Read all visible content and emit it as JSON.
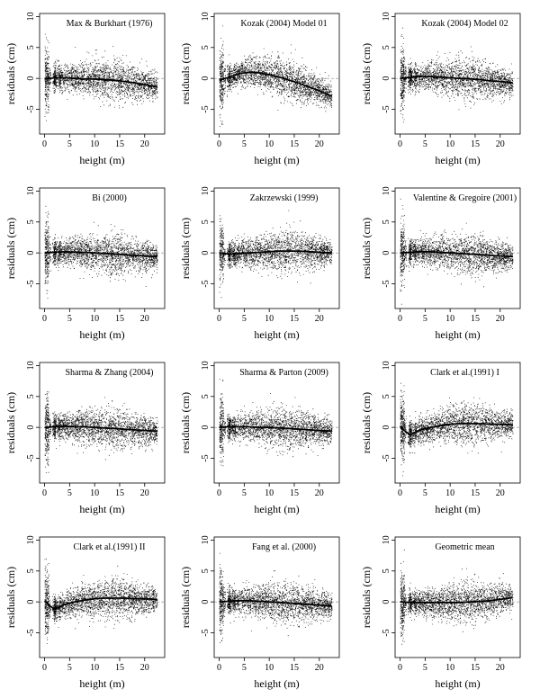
{
  "figure": {
    "x_axis_label": "height (m)",
    "y_axis_label": "residuals (cm)"
  },
  "chart_data": [
    {
      "type": "scatter",
      "title": "Max & Burkhart (1976)",
      "xlabel": "height (m)",
      "ylabel": "residuals (cm)",
      "xlim": [
        -1,
        24
      ],
      "ylim": [
        -9,
        10.5
      ],
      "xticks": [
        0,
        5,
        10,
        15,
        20
      ],
      "yticks": [
        -5,
        0,
        5,
        10
      ],
      "zero_reference_line": 0,
      "smoother_x": [
        0,
        2,
        4,
        6,
        8,
        10,
        12,
        14,
        16,
        18,
        20,
        22.5
      ],
      "smoother_y": [
        -0.1,
        0.1,
        0.1,
        0.0,
        -0.1,
        -0.1,
        -0.2,
        -0.3,
        -0.5,
        -0.7,
        -1.0,
        -1.4
      ]
    },
    {
      "type": "scatter",
      "title": "Kozak (2004) Model 01",
      "xlabel": "height (m)",
      "ylabel": "residuals (cm)",
      "xlim": [
        -1,
        24
      ],
      "ylim": [
        -9,
        10.5
      ],
      "xticks": [
        0,
        5,
        10,
        15,
        20
      ],
      "yticks": [
        -5,
        0,
        5,
        10
      ],
      "zero_reference_line": 0,
      "smoother_x": [
        0,
        2,
        4,
        6,
        8,
        10,
        12,
        14,
        16,
        18,
        20,
        22.5
      ],
      "smoother_y": [
        -0.3,
        0.2,
        0.8,
        1.0,
        0.9,
        0.6,
        0.2,
        -0.3,
        -0.8,
        -1.4,
        -2.0,
        -2.9
      ]
    },
    {
      "type": "scatter",
      "title": "Kozak (2004) Model 02",
      "xlabel": "height (m)",
      "ylabel": "residuals (cm)",
      "xlim": [
        -1,
        24
      ],
      "ylim": [
        -9,
        10.5
      ],
      "xticks": [
        0,
        5,
        10,
        15,
        20
      ],
      "yticks": [
        -5,
        0,
        5,
        10
      ],
      "zero_reference_line": 0,
      "smoother_x": [
        0,
        2,
        4,
        6,
        8,
        10,
        12,
        14,
        16,
        18,
        20,
        22.5
      ],
      "smoother_y": [
        0.0,
        0.2,
        0.3,
        0.3,
        0.2,
        0.1,
        0.0,
        -0.1,
        -0.2,
        -0.4,
        -0.5,
        -0.7
      ]
    },
    {
      "type": "scatter",
      "title": "Bi (2000)",
      "xlabel": "height (m)",
      "ylabel": "residuals (cm)",
      "xlim": [
        -1,
        24
      ],
      "ylim": [
        -9,
        10.5
      ],
      "xticks": [
        0,
        5,
        10,
        15,
        20
      ],
      "yticks": [
        -5,
        0,
        5,
        10
      ],
      "zero_reference_line": 0,
      "smoother_x": [
        0,
        2,
        4,
        6,
        8,
        10,
        12,
        14,
        16,
        18,
        20,
        22.5
      ],
      "smoother_y": [
        0.0,
        0.1,
        0.2,
        0.1,
        0.1,
        0.0,
        -0.1,
        -0.2,
        -0.3,
        -0.4,
        -0.5,
        -0.6
      ]
    },
    {
      "type": "scatter",
      "title": "Zakrzewski (1999)",
      "xlabel": "height (m)",
      "ylabel": "residuals (cm)",
      "xlim": [
        -1,
        24
      ],
      "ylim": [
        -9,
        10.5
      ],
      "xticks": [
        0,
        5,
        10,
        15,
        20
      ],
      "yticks": [
        -5,
        0,
        5,
        10
      ],
      "zero_reference_line": 0,
      "smoother_x": [
        0,
        2,
        4,
        6,
        8,
        10,
        12,
        14,
        16,
        18,
        20,
        22.5
      ],
      "smoother_y": [
        0.0,
        -0.2,
        -0.1,
        0.0,
        0.1,
        0.2,
        0.3,
        0.3,
        0.3,
        0.2,
        0.1,
        0.0
      ]
    },
    {
      "type": "scatter",
      "title": "Valentine & Gregoire (2001)",
      "xlabel": "height (m)",
      "ylabel": "residuals (cm)",
      "xlim": [
        -1,
        24
      ],
      "ylim": [
        -9,
        10.5
      ],
      "xticks": [
        0,
        5,
        10,
        15,
        20
      ],
      "yticks": [
        -5,
        0,
        5,
        10
      ],
      "zero_reference_line": 0,
      "smoother_x": [
        0,
        2,
        4,
        6,
        8,
        10,
        12,
        14,
        16,
        18,
        20,
        22.5
      ],
      "smoother_y": [
        0.0,
        0.1,
        0.2,
        0.2,
        0.1,
        0.0,
        -0.1,
        -0.2,
        -0.3,
        -0.4,
        -0.5,
        -0.6
      ]
    },
    {
      "type": "scatter",
      "title": "Sharma & Zhang (2004)",
      "xlabel": "height (m)",
      "ylabel": "residuals (cm)",
      "xlim": [
        -1,
        24
      ],
      "ylim": [
        -9,
        10.5
      ],
      "xticks": [
        0,
        5,
        10,
        15,
        20
      ],
      "yticks": [
        -5,
        0,
        5,
        10
      ],
      "zero_reference_line": 0,
      "smoother_x": [
        0,
        2,
        4,
        6,
        8,
        10,
        12,
        14,
        16,
        18,
        20,
        22.5
      ],
      "smoother_y": [
        0.0,
        0.1,
        0.2,
        0.1,
        0.1,
        0.0,
        -0.1,
        -0.2,
        -0.3,
        -0.4,
        -0.5,
        -0.6
      ]
    },
    {
      "type": "scatter",
      "title": "Sharma & Parton (2009)",
      "xlabel": "height (m)",
      "ylabel": "residuals (cm)",
      "xlim": [
        -1,
        24
      ],
      "ylim": [
        -9,
        10.5
      ],
      "xticks": [
        0,
        5,
        10,
        15,
        20
      ],
      "yticks": [
        -5,
        0,
        5,
        10
      ],
      "zero_reference_line": 0,
      "smoother_x": [
        0,
        2,
        4,
        6,
        8,
        10,
        12,
        14,
        16,
        18,
        20,
        22.5
      ],
      "smoother_y": [
        0.0,
        0.1,
        0.1,
        0.1,
        0.0,
        0.0,
        -0.1,
        -0.2,
        -0.3,
        -0.4,
        -0.5,
        -0.6
      ]
    },
    {
      "type": "scatter",
      "title": "Clark et al.(1991) I",
      "xlabel": "height (m)",
      "ylabel": "residuals (cm)",
      "xlim": [
        -1,
        24
      ],
      "ylim": [
        -9,
        10.5
      ],
      "xticks": [
        0,
        5,
        10,
        15,
        20
      ],
      "yticks": [
        -5,
        0,
        5,
        10
      ],
      "zero_reference_line": 0,
      "smoother_x": [
        0,
        1,
        2,
        3,
        4,
        6,
        8,
        10,
        12,
        14,
        16,
        18,
        20,
        22.5
      ],
      "smoother_y": [
        0.2,
        -0.6,
        -1.2,
        -0.8,
        -0.4,
        0.0,
        0.3,
        0.5,
        0.6,
        0.6,
        0.6,
        0.5,
        0.5,
        0.4
      ]
    },
    {
      "type": "scatter",
      "title": "Clark et al.(1991) II",
      "xlabel": "height (m)",
      "ylabel": "residuals (cm)",
      "xlim": [
        -1,
        24
      ],
      "ylim": [
        -9,
        10.5
      ],
      "xticks": [
        0,
        5,
        10,
        15,
        20
      ],
      "yticks": [
        -5,
        0,
        5,
        10
      ],
      "zero_reference_line": 0,
      "smoother_x": [
        0,
        1,
        2,
        3,
        4,
        6,
        8,
        10,
        12,
        14,
        16,
        18,
        20,
        22.5
      ],
      "smoother_y": [
        0.2,
        -0.6,
        -1.2,
        -0.8,
        -0.4,
        0.0,
        0.3,
        0.5,
        0.6,
        0.6,
        0.6,
        0.5,
        0.5,
        0.4
      ]
    },
    {
      "type": "scatter",
      "title": "Fang et al. (2000)",
      "xlabel": "height (m)",
      "ylabel": "residuals (cm)",
      "xlim": [
        -1,
        24
      ],
      "ylim": [
        -9,
        10.5
      ],
      "xticks": [
        0,
        5,
        10,
        15,
        20
      ],
      "yticks": [
        -5,
        0,
        5,
        10
      ],
      "zero_reference_line": 0,
      "smoother_x": [
        0,
        2,
        4,
        6,
        8,
        10,
        12,
        14,
        16,
        18,
        20,
        22.5
      ],
      "smoother_y": [
        0.0,
        0.1,
        0.2,
        0.2,
        0.1,
        0.0,
        -0.1,
        -0.2,
        -0.3,
        -0.4,
        -0.5,
        -0.7
      ]
    },
    {
      "type": "scatter",
      "title": "Geometric mean",
      "xlabel": "height (m)",
      "ylabel": "residuals (cm)",
      "xlim": [
        -1,
        24
      ],
      "ylim": [
        -9,
        10.5
      ],
      "xticks": [
        0,
        5,
        10,
        15,
        20
      ],
      "yticks": [
        -5,
        0,
        5,
        10
      ],
      "zero_reference_line": 0,
      "smoother_x": [
        0,
        2,
        4,
        6,
        8,
        10,
        12,
        14,
        16,
        18,
        20,
        22.5
      ],
      "smoother_y": [
        0.0,
        -0.1,
        -0.1,
        -0.1,
        -0.1,
        -0.1,
        -0.1,
        0.0,
        0.1,
        0.2,
        0.4,
        0.7
      ]
    }
  ]
}
